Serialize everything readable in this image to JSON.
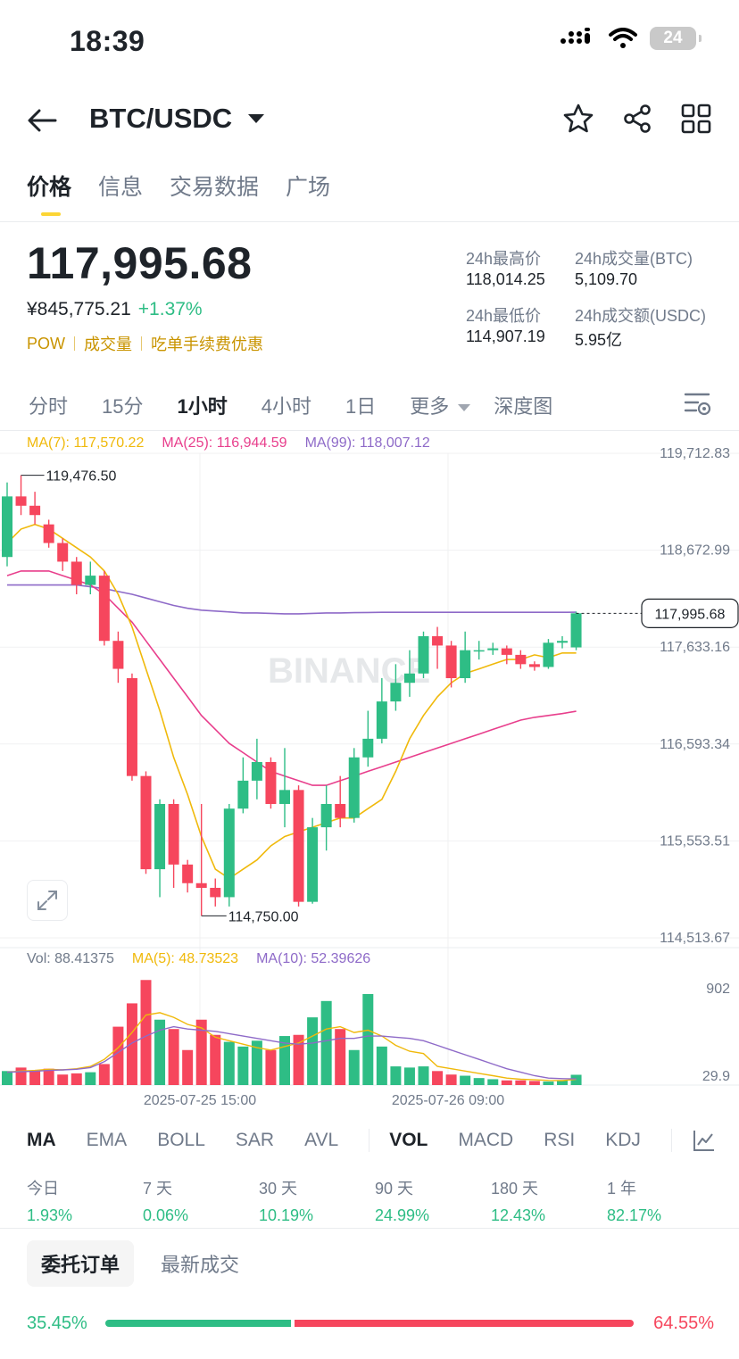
{
  "status": {
    "time": "18:39",
    "battery": "24"
  },
  "header": {
    "pair": "BTC/USDC"
  },
  "tabs": [
    "价格",
    "信息",
    "交易数据",
    "广场"
  ],
  "price": {
    "last": "117,995.68",
    "cny": "¥845,775.21",
    "change": "+1.37%",
    "tags": [
      "POW",
      "成交量",
      "吃单手续费优惠"
    ]
  },
  "stats": {
    "high_label": "24h最高价",
    "high": "118,014.25",
    "low_label": "24h最低价",
    "low": "114,907.19",
    "vol_btc_label": "24h成交量(BTC)",
    "vol_btc": "5,109.70",
    "vol_usdc_label": "24h成交额(USDC)",
    "vol_usdc": "5.95亿"
  },
  "intervals": [
    "分时",
    "15分",
    "1小时",
    "4小时",
    "1日",
    "更多",
    "深度图"
  ],
  "ma_legend": {
    "ma7": "MA(7): 117,570.22",
    "ma25": "MA(25): 116,944.59",
    "ma99": "MA(99): 118,007.12"
  },
  "vol_legend": {
    "vol": "Vol: 88.41375",
    "ma5": "MA(5): 48.73523",
    "ma10": "MA(10): 52.39626"
  },
  "indicators": [
    "MA",
    "EMA",
    "BOLL",
    "SAR",
    "AVL",
    "VOL",
    "MACD",
    "RSI",
    "KDJ"
  ],
  "performance": [
    {
      "label": "今日",
      "value": "1.93%"
    },
    {
      "label": "7 天",
      "value": "0.06%"
    },
    {
      "label": "30 天",
      "value": "10.19%"
    },
    {
      "label": "90 天",
      "value": "24.99%"
    },
    {
      "label": "180 天",
      "value": "12.43%"
    },
    {
      "label": "1 年",
      "value": "82.17%"
    }
  ],
  "orderbook": {
    "tab_active": "委托订单",
    "tab_other": "最新成交",
    "buy_pct": "35.45%",
    "sell_pct": "64.55%",
    "buy_ratio": 0.3545
  },
  "colors": {
    "up": "#2ebd85",
    "down": "#f6465d",
    "ma7": "#f0b90b",
    "ma25": "#e83e8c",
    "ma99": "#8e6ac8",
    "accent": "#fcd535"
  },
  "chart_data": {
    "type": "candlestick",
    "watermark": "BINANCE",
    "y_ticks": [
      "119,712.83",
      "118,672.99",
      "117,633.16",
      "116,593.34",
      "115,553.51",
      "114,513.67"
    ],
    "ylim": [
      114513.67,
      119712.83
    ],
    "x_ticks": [
      "2025-07-25 15:00",
      "2025-07-26 09:00"
    ],
    "annotations": {
      "high": "119,476.50",
      "low": "114,750.00",
      "last": "117,995.68"
    },
    "vol_ticks": [
      "902",
      "29.9"
    ],
    "vol_ylim": [
      0,
      902
    ],
    "candles": [
      {
        "o": 118600,
        "c": 119250,
        "h": 119400,
        "l": 118500
      },
      {
        "o": 119250,
        "c": 119150,
        "h": 119476.5,
        "l": 119050
      },
      {
        "o": 119150,
        "c": 119050,
        "h": 119300,
        "l": 118950
      },
      {
        "o": 118950,
        "c": 118750,
        "h": 119000,
        "l": 118700
      },
      {
        "o": 118750,
        "c": 118550,
        "h": 118800,
        "l": 118450
      },
      {
        "o": 118550,
        "c": 118300,
        "h": 118600,
        "l": 118200
      },
      {
        "o": 118300,
        "c": 118400,
        "h": 118550,
        "l": 118200
      },
      {
        "o": 118400,
        "c": 117700,
        "h": 118450,
        "l": 117650
      },
      {
        "o": 117700,
        "c": 117400,
        "h": 117800,
        "l": 117250
      },
      {
        "o": 117300,
        "c": 116250,
        "h": 117350,
        "l": 116200
      },
      {
        "o": 116250,
        "c": 115250,
        "h": 116300,
        "l": 115200
      },
      {
        "o": 115250,
        "c": 115950,
        "h": 116000,
        "l": 114950
      },
      {
        "o": 115950,
        "c": 115300,
        "h": 116000,
        "l": 115050
      },
      {
        "o": 115300,
        "c": 115100,
        "h": 115350,
        "l": 115000
      },
      {
        "o": 115100,
        "c": 115050,
        "h": 115950,
        "l": 114750
      },
      {
        "o": 115050,
        "c": 114950,
        "h": 115150,
        "l": 114850
      },
      {
        "o": 114950,
        "c": 115900,
        "h": 115950,
        "l": 114850
      },
      {
        "o": 115900,
        "c": 116200,
        "h": 116450,
        "l": 115850
      },
      {
        "o": 116200,
        "c": 116400,
        "h": 116650,
        "l": 116000
      },
      {
        "o": 116400,
        "c": 115950,
        "h": 116450,
        "l": 115900
      },
      {
        "o": 115950,
        "c": 116100,
        "h": 116550,
        "l": 115700
      },
      {
        "o": 116100,
        "c": 114900,
        "h": 116150,
        "l": 114850
      },
      {
        "o": 114900,
        "c": 115700,
        "h": 115800,
        "l": 114880
      },
      {
        "o": 115700,
        "c": 115950,
        "h": 116150,
        "l": 115450
      },
      {
        "o": 115950,
        "c": 115800,
        "h": 116250,
        "l": 115700
      },
      {
        "o": 115800,
        "c": 116450,
        "h": 116550,
        "l": 115750
      },
      {
        "o": 116450,
        "c": 116650,
        "h": 116950,
        "l": 116350
      },
      {
        "o": 116650,
        "c": 117050,
        "h": 117300,
        "l": 116600
      },
      {
        "o": 117050,
        "c": 117250,
        "h": 117450,
        "l": 116950
      },
      {
        "o": 117250,
        "c": 117350,
        "h": 117600,
        "l": 117100
      },
      {
        "o": 117350,
        "c": 117750,
        "h": 117800,
        "l": 117300
      },
      {
        "o": 117750,
        "c": 117650,
        "h": 117850,
        "l": 117400
      },
      {
        "o": 117650,
        "c": 117300,
        "h": 117700,
        "l": 117200
      },
      {
        "o": 117300,
        "c": 117600,
        "h": 117800,
        "l": 117250
      },
      {
        "o": 117600,
        "c": 117600,
        "h": 117700,
        "l": 117500
      },
      {
        "o": 117600,
        "c": 117620,
        "h": 117680,
        "l": 117550
      },
      {
        "o": 117620,
        "c": 117550,
        "h": 117650,
        "l": 117450
      },
      {
        "o": 117550,
        "c": 117450,
        "h": 117600,
        "l": 117400
      },
      {
        "o": 117450,
        "c": 117420,
        "h": 117480,
        "l": 117380
      },
      {
        "o": 117420,
        "c": 117680,
        "h": 117720,
        "l": 117400
      },
      {
        "o": 117680,
        "c": 117700,
        "h": 117750,
        "l": 117620
      },
      {
        "o": 117630,
        "c": 117996,
        "h": 118014,
        "l": 117600
      }
    ],
    "volumes": [
      120,
      150,
      120,
      140,
      90,
      100,
      110,
      180,
      500,
      700,
      900,
      560,
      480,
      300,
      560,
      430,
      370,
      330,
      380,
      300,
      420,
      430,
      580,
      720,
      480,
      300,
      780,
      330,
      160,
      150,
      160,
      120,
      90,
      80,
      60,
      50,
      40,
      40,
      35,
      30,
      40,
      88
    ],
    "ma7": [
      118750,
      118900,
      118950,
      118900,
      118800,
      118700,
      118600,
      118450,
      118200,
      117850,
      117400,
      116950,
      116450,
      116050,
      115600,
      115250,
      115150,
      115250,
      115350,
      115500,
      115600,
      115650,
      115700,
      115750,
      115800,
      115800,
      115900,
      116000,
      116300,
      116650,
      116900,
      117100,
      117250,
      117350,
      117400,
      117450,
      117500,
      117500,
      117550,
      117520,
      117570,
      117570
    ],
    "ma25": [
      118400,
      118450,
      118450,
      118450,
      118400,
      118350,
      118300,
      118200,
      118050,
      117900,
      117700,
      117500,
      117300,
      117100,
      116900,
      116750,
      116600,
      116500,
      116400,
      116300,
      116250,
      116200,
      116150,
      116150,
      116200,
      116250,
      116300,
      116350,
      116400,
      116450,
      116500,
      116550,
      116600,
      116650,
      116700,
      116750,
      116800,
      116850,
      116880,
      116900,
      116920,
      116944.59
    ],
    "ma99": [
      118300,
      118300,
      118300,
      118300,
      118300,
      118300,
      118280,
      118260,
      118230,
      118200,
      118160,
      118120,
      118080,
      118050,
      118030,
      118020,
      118010,
      118000,
      118000,
      117995,
      117990,
      117990,
      117995,
      118000,
      118000,
      118003,
      118005,
      118007,
      118007,
      118007,
      118007,
      118007,
      118007,
      118007,
      118007,
      118007,
      118007,
      118007,
      118007,
      118007,
      118007,
      118007.12
    ],
    "vol_ma5": [
      110,
      120,
      125,
      135,
      130,
      140,
      160,
      220,
      320,
      450,
      600,
      620,
      580,
      520,
      490,
      410,
      380,
      350,
      320,
      300,
      330,
      360,
      420,
      480,
      500,
      450,
      470,
      420,
      340,
      290,
      270,
      160,
      140,
      120,
      100,
      80,
      60,
      50,
      45,
      40,
      38,
      48.7
    ],
    "vol_ma10": [
      110,
      115,
      118,
      125,
      130,
      135,
      150,
      200,
      280,
      360,
      420,
      470,
      500,
      480,
      470,
      460,
      440,
      420,
      400,
      380,
      360,
      350,
      360,
      380,
      400,
      400,
      420,
      420,
      410,
      400,
      380,
      340,
      300,
      260,
      220,
      180,
      140,
      110,
      80,
      60,
      55,
      52.4
    ]
  }
}
